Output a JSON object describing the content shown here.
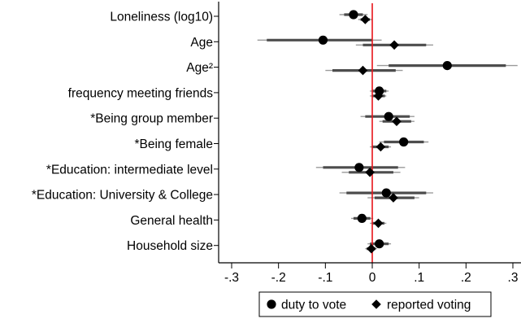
{
  "chart_data": {
    "type": "scatter",
    "subtype": "coefficient-plot",
    "orientation": "horizontal",
    "xlim": [
      -0.3,
      0.3
    ],
    "x_ticks": [
      -0.3,
      -0.2,
      -0.1,
      0,
      0.1,
      0.2,
      0.3
    ],
    "x_tick_labels": [
      "-.3",
      "-.2",
      "-.1",
      "0",
      ".1",
      ".2",
      ".3"
    ],
    "reference_line": {
      "x": 0,
      "color": "#e8141a"
    },
    "grid": false,
    "legend_position": "bottom",
    "categories": [
      "Loneliness (log10)",
      "Age",
      "Age²",
      "frequency meeting friends",
      "*Being group member",
      "*Being female",
      "*Education: intermediate level",
      "*Education: University & College",
      "General health",
      "Household size"
    ],
    "series": [
      {
        "name": "duty to vote",
        "marker": "circle",
        "color": "#000000",
        "points": [
          {
            "estimate": -0.04,
            "ci95": [
              -0.07,
              -0.01
            ],
            "ci90": [
              -0.06,
              -0.02
            ]
          },
          {
            "estimate": -0.105,
            "ci95": [
              -0.245,
              0.02
            ],
            "ci90": [
              -0.225,
              0.0
            ]
          },
          {
            "estimate": 0.16,
            "ci95": [
              0.01,
              0.31
            ],
            "ci90": [
              0.035,
              0.285
            ]
          },
          {
            "estimate": 0.015,
            "ci95": [
              -0.005,
              0.035
            ],
            "ci90": [
              0.0,
              0.03
            ]
          },
          {
            "estimate": 0.035,
            "ci95": [
              -0.025,
              0.09
            ],
            "ci90": [
              -0.015,
              0.08
            ]
          },
          {
            "estimate": 0.067,
            "ci95": [
              0.015,
              0.12
            ],
            "ci90": [
              0.025,
              0.11
            ]
          },
          {
            "estimate": -0.028,
            "ci95": [
              -0.12,
              0.07
            ],
            "ci90": [
              -0.105,
              0.055
            ]
          },
          {
            "estimate": 0.03,
            "ci95": [
              -0.07,
              0.13
            ],
            "ci90": [
              -0.055,
              0.115
            ]
          },
          {
            "estimate": -0.022,
            "ci95": [
              -0.045,
              0.002
            ],
            "ci90": [
              -0.04,
              -0.004
            ]
          },
          {
            "estimate": 0.015,
            "ci95": [
              -0.01,
              0.04
            ],
            "ci90": [
              -0.005,
              0.035
            ]
          }
        ]
      },
      {
        "name": "reported voting",
        "marker": "diamond",
        "color": "#000000",
        "points": [
          {
            "estimate": -0.015,
            "ci95": [
              -0.03,
              0.0
            ],
            "ci90": [
              -0.025,
              -0.005
            ]
          },
          {
            "estimate": 0.047,
            "ci95": [
              -0.035,
              0.13
            ],
            "ci90": [
              -0.02,
              0.115
            ]
          },
          {
            "estimate": -0.02,
            "ci95": [
              -0.1,
              0.065
            ],
            "ci90": [
              -0.085,
              0.05
            ]
          },
          {
            "estimate": 0.013,
            "ci95": [
              -0.005,
              0.03
            ],
            "ci90": [
              0.0,
              0.027
            ]
          },
          {
            "estimate": 0.052,
            "ci95": [
              0.015,
              0.09
            ],
            "ci90": [
              0.022,
              0.083
            ]
          },
          {
            "estimate": 0.018,
            "ci95": [
              -0.005,
              0.04
            ],
            "ci90": [
              0.0,
              0.035
            ]
          },
          {
            "estimate": -0.005,
            "ci95": [
              -0.065,
              0.06
            ],
            "ci90": [
              -0.05,
              0.045
            ]
          },
          {
            "estimate": 0.045,
            "ci95": [
              -0.01,
              0.1
            ],
            "ci90": [
              0.005,
              0.09
            ]
          },
          {
            "estimate": 0.013,
            "ci95": [
              -0.005,
              0.03
            ],
            "ci90": [
              0.0,
              0.026
            ]
          },
          {
            "estimate": -0.002,
            "ci95": [
              -0.015,
              0.01
            ],
            "ci90": [
              -0.012,
              0.007
            ]
          }
        ]
      }
    ]
  }
}
